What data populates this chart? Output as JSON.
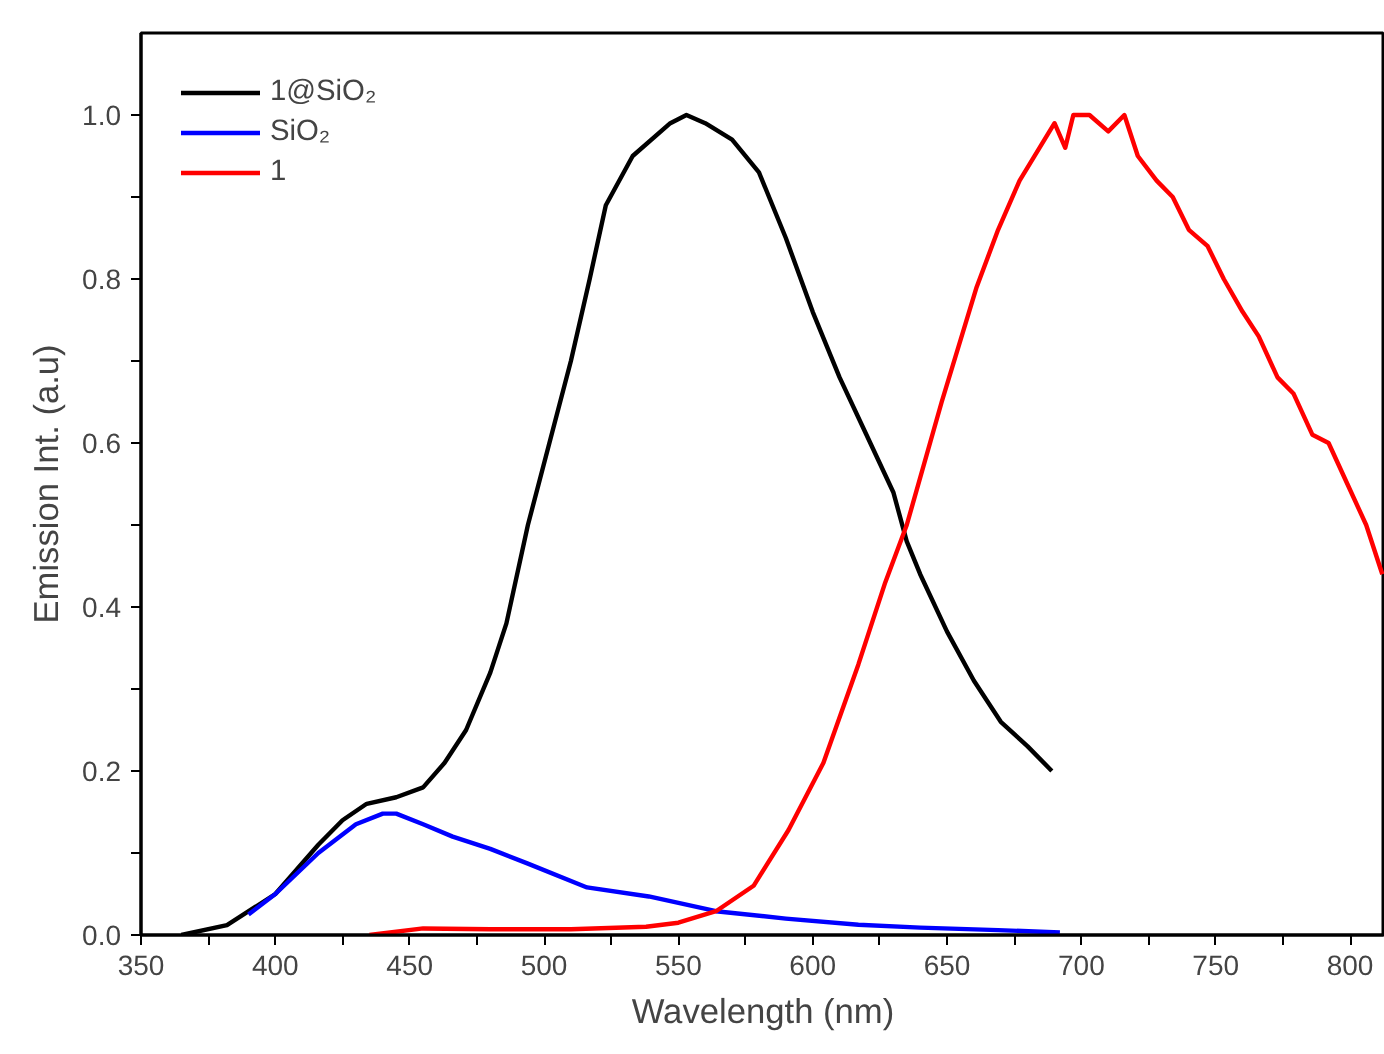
{
  "chart_data": {
    "type": "line",
    "xlabel": "Wavelength (nm)",
    "ylabel": "Emission Int. (a.u)",
    "xlim": [
      350,
      813
    ],
    "ylim": [
      0,
      1.1
    ],
    "xticks": [
      350,
      {
        "value": 375,
        "label": null
      },
      400,
      {
        "value": 425,
        "label": null
      },
      450,
      {
        "value": 475,
        "label": null
      },
      500,
      {
        "value": 525,
        "label": null
      },
      550,
      {
        "value": 575,
        "label": null
      },
      600,
      {
        "value": 625,
        "label": null
      },
      650,
      {
        "value": 675,
        "label": null
      },
      700,
      {
        "value": 725,
        "label": null
      },
      750,
      {
        "value": 775,
        "label": null
      },
      800
    ],
    "yticks": [
      {
        "value": 0,
        "label": "0.0"
      },
      {
        "value": 0.1,
        "label": null
      },
      0.2,
      {
        "value": 0.3,
        "label": null
      },
      0.4,
      {
        "value": 0.5,
        "label": null
      },
      0.6,
      {
        "value": 0.7,
        "label": null
      },
      0.8,
      {
        "value": 0.9,
        "label": null
      },
      {
        "value": 1.0,
        "label": "1.0"
      }
    ],
    "legend": "top left",
    "grid": false,
    "marker": "none",
    "line_style": "solid",
    "series": [
      {
        "name": "1@SiO₂",
        "color": "#000000",
        "x": [
          365,
          382,
          400,
          416,
          425,
          434,
          445,
          455,
          463,
          471,
          480,
          486,
          494,
          502,
          510,
          517,
          523,
          533,
          547,
          553,
          560,
          570,
          580,
          590,
          600,
          610,
          620,
          630,
          635,
          640,
          650,
          660,
          670,
          680,
          689
        ],
        "values": [
          0,
          0.012,
          0.05,
          0.11,
          0.14,
          0.16,
          0.168,
          0.18,
          0.21,
          0.25,
          0.32,
          0.38,
          0.5,
          0.6,
          0.7,
          0.8,
          0.89,
          0.95,
          0.99,
          1.0,
          0.99,
          0.97,
          0.93,
          0.85,
          0.76,
          0.68,
          0.61,
          0.54,
          0.48,
          0.44,
          0.37,
          0.31,
          0.26,
          0.23,
          0.2
        ]
      },
      {
        "name": "SiO₂",
        "color": "#0000ff",
        "x": [
          390,
          400,
          416,
          430,
          440,
          445,
          455,
          466,
          480,
          494,
          516,
          539,
          564,
          590,
          617,
          640,
          669,
          692
        ],
        "values": [
          0.025,
          0.05,
          0.1,
          0.135,
          0.148,
          0.148,
          0.135,
          0.12,
          0.105,
          0.087,
          0.058,
          0.047,
          0.029,
          0.02,
          0.0125,
          0.009,
          0.006,
          0.003
        ]
      },
      {
        "name": "1",
        "color": "#ff0000",
        "x": [
          435,
          455,
          480,
          510,
          538,
          550,
          564,
          578,
          591,
          604,
          617,
          627,
          635,
          648,
          661,
          669,
          677,
          690,
          694,
          697,
          703,
          710,
          716,
          721,
          728,
          734,
          740,
          747,
          753,
          760,
          766,
          773,
          779,
          786,
          792,
          799,
          806,
          812
        ],
        "values": [
          0,
          0.008,
          0.007,
          0.007,
          0.01,
          0.015,
          0.029,
          0.06,
          0.128,
          0.21,
          0.33,
          0.43,
          0.5,
          0.65,
          0.79,
          0.86,
          0.92,
          0.99,
          0.96,
          1.0,
          1.0,
          0.98,
          1.0,
          0.95,
          0.92,
          0.9,
          0.86,
          0.84,
          0.8,
          0.76,
          0.73,
          0.68,
          0.66,
          0.61,
          0.6,
          0.55,
          0.5,
          0.44
        ]
      }
    ]
  }
}
